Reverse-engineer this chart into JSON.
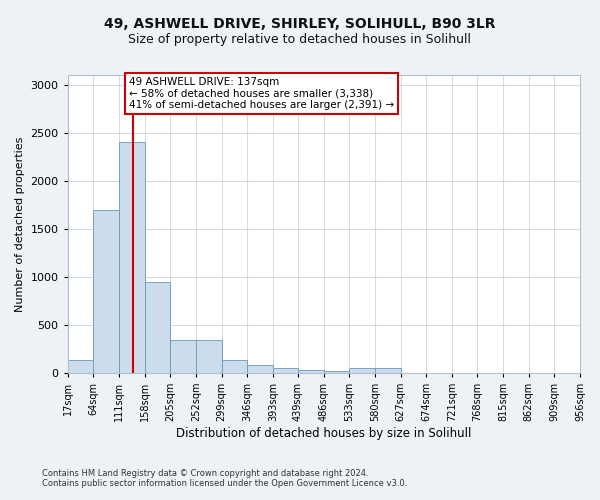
{
  "title1": "49, ASHWELL DRIVE, SHIRLEY, SOLIHULL, B90 3LR",
  "title2": "Size of property relative to detached houses in Solihull",
  "xlabel": "Distribution of detached houses by size in Solihull",
  "ylabel": "Number of detached properties",
  "bar_color": "#ccdcec",
  "bar_edge_color": "#6699bb",
  "vline_x": 137,
  "vline_color": "#cc0000",
  "annotation_text": "49 ASHWELL DRIVE: 137sqm\n← 58% of detached houses are smaller (3,338)\n41% of semi-detached houses are larger (2,391) →",
  "annotation_box_color": "#ffffff",
  "annotation_border_color": "#cc0000",
  "bin_edges": [
    17,
    64,
    111,
    158,
    205,
    252,
    299,
    346,
    393,
    439,
    486,
    533,
    580,
    627,
    674,
    721,
    768,
    815,
    862,
    909,
    956
  ],
  "bar_heights": [
    130,
    1700,
    2400,
    950,
    340,
    340,
    130,
    80,
    50,
    30,
    25,
    50,
    50,
    3,
    3,
    3,
    3,
    3,
    3,
    3
  ],
  "ylim": [
    0,
    3100
  ],
  "yticks": [
    0,
    500,
    1000,
    1500,
    2000,
    2500,
    3000
  ],
  "footnote1": "Contains HM Land Registry data © Crown copyright and database right 2024.",
  "footnote2": "Contains public sector information licensed under the Open Government Licence v3.0.",
  "background_color": "#eef2f7",
  "plot_bg_color": "#ffffff",
  "grid_color": "#c8d4e0",
  "title1_fontsize": 10,
  "title2_fontsize": 9,
  "tick_label_fontsize": 7,
  "ylabel_fontsize": 8,
  "xlabel_fontsize": 8.5,
  "footnote_fontsize": 6
}
